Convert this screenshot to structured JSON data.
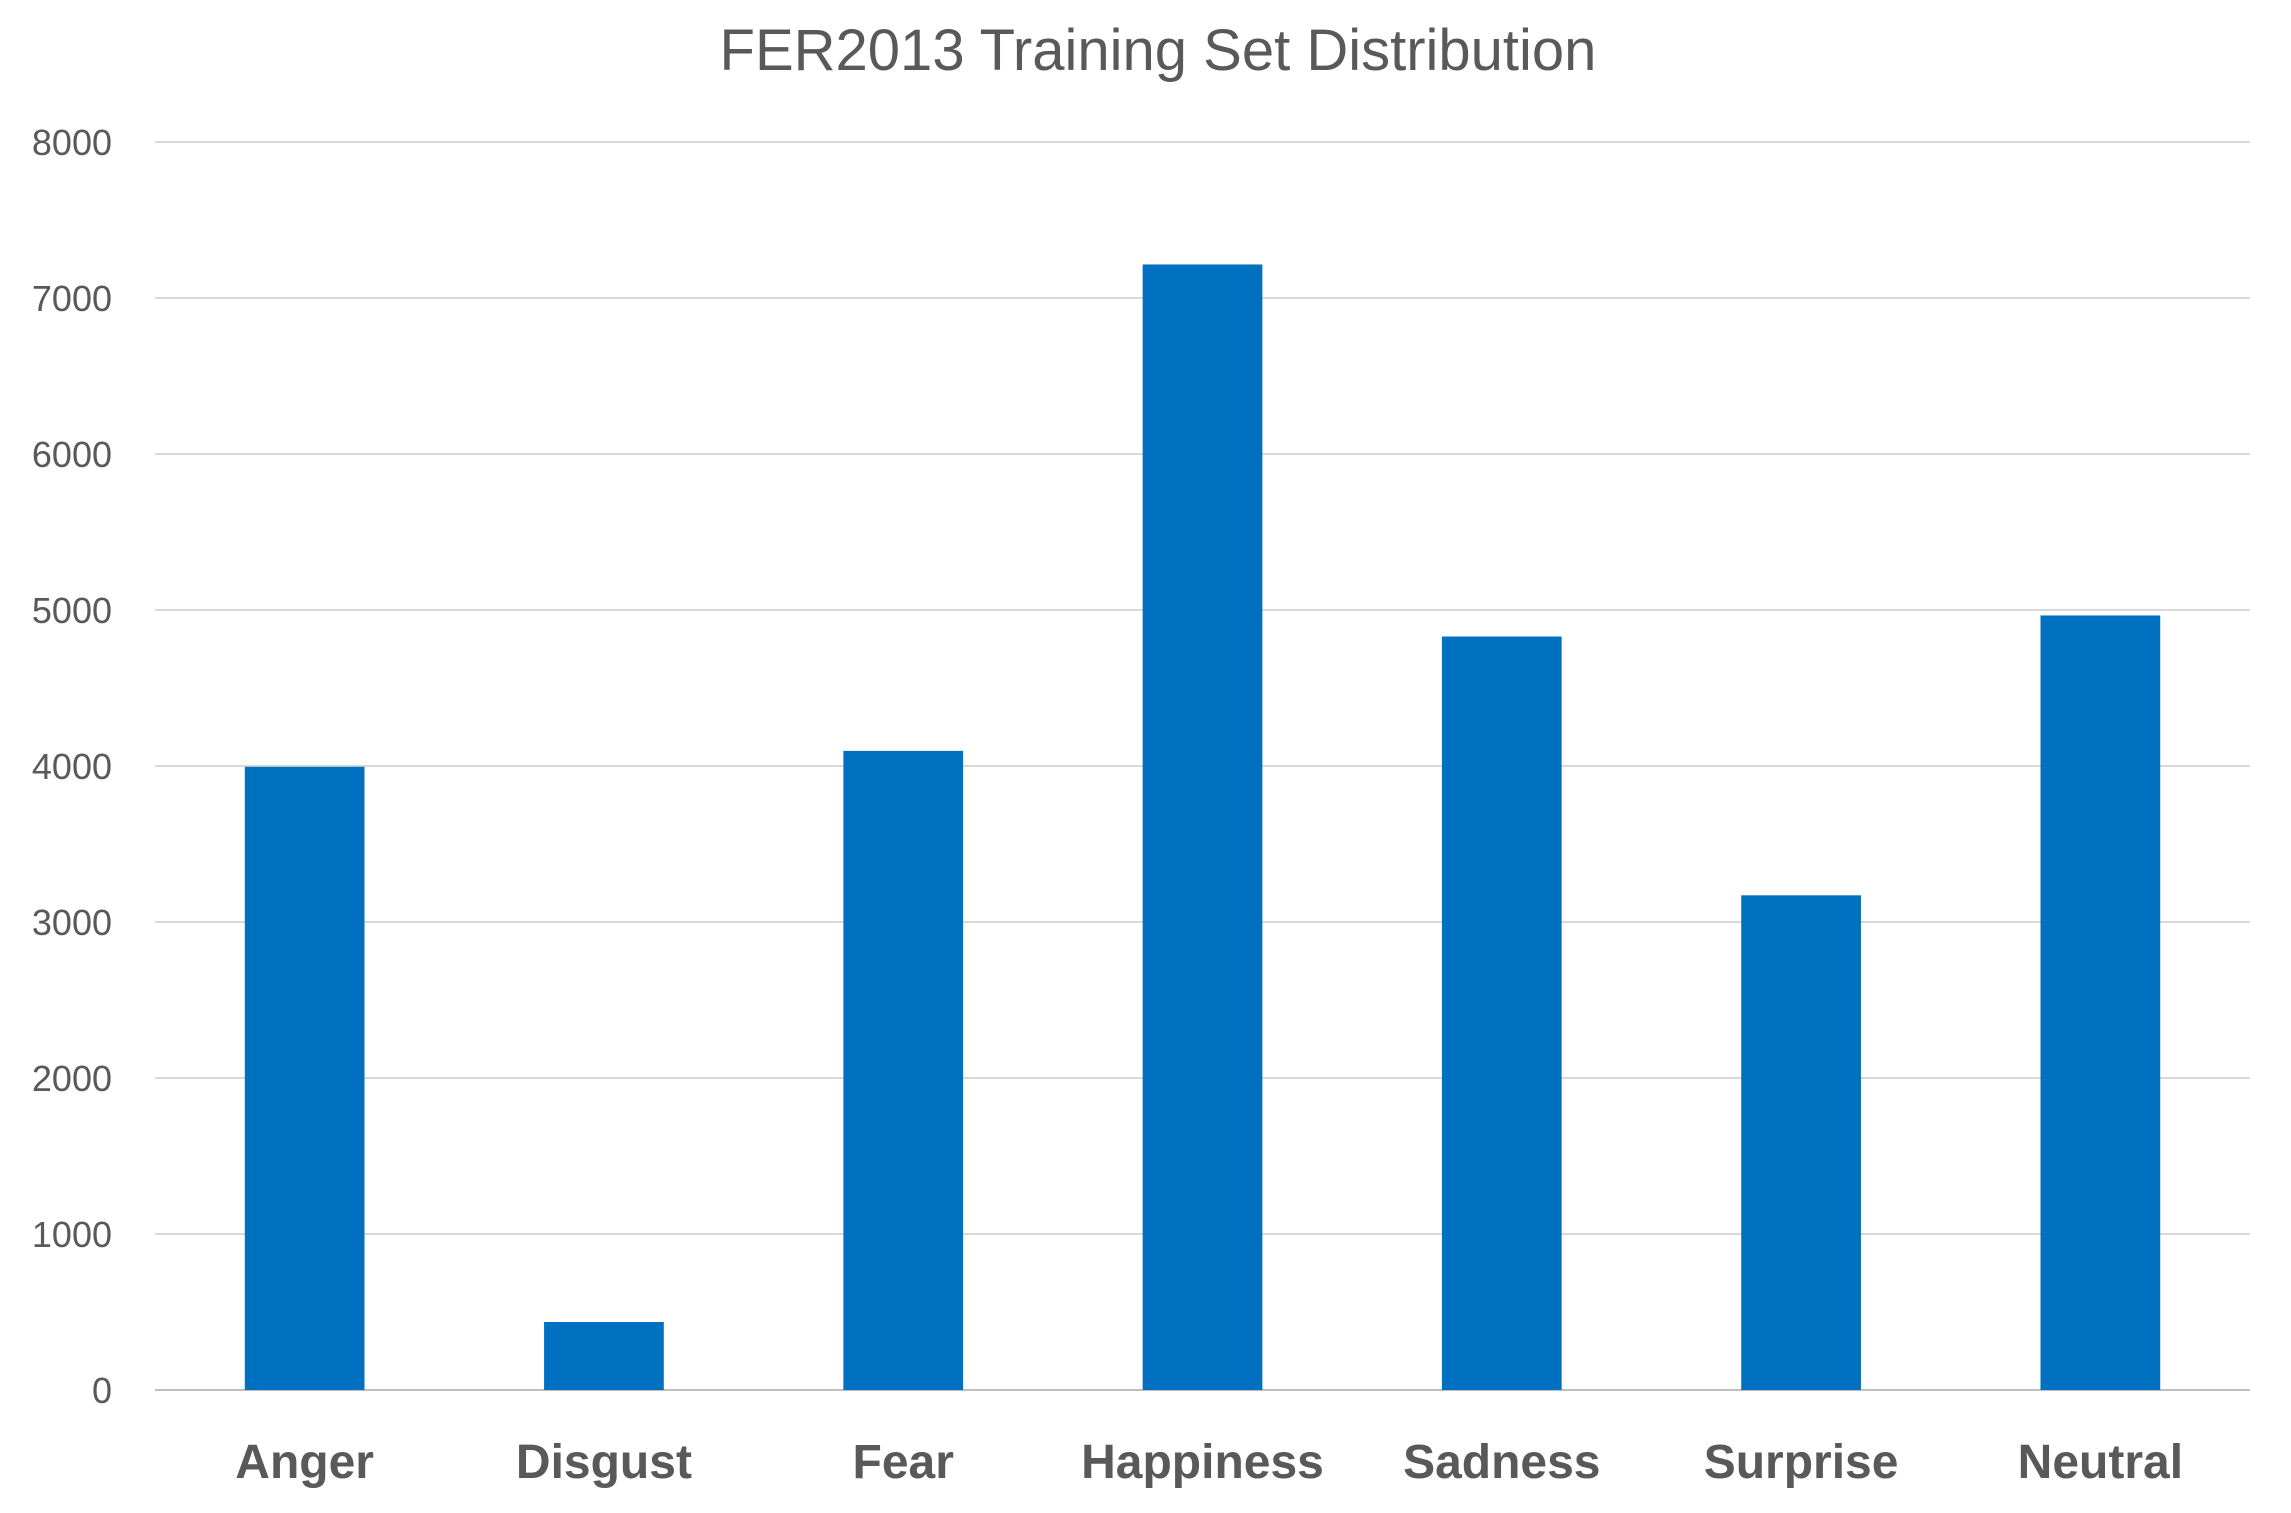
{
  "colors": {
    "bar": "#0070C0",
    "gridline": "#D9D9D9",
    "axis_line": "#BFBFBF",
    "title_text": "#595959",
    "tick_text": "#595959",
    "background": "#FFFFFF"
  },
  "chart_data": {
    "type": "bar",
    "title": "FER2013 Training Set Distribution",
    "xlabel": "",
    "ylabel": "",
    "categories": [
      "Anger",
      "Disgust",
      "Fear",
      "Happiness",
      "Sadness",
      "Surprise",
      "Neutral"
    ],
    "series": [
      {
        "values": [
          3995,
          436,
          4097,
          7215,
          4830,
          3171,
          4965
        ]
      }
    ],
    "ylim": [
      0,
      8000
    ],
    "yticks": [
      0,
      1000,
      2000,
      3000,
      4000,
      5000,
      6000,
      7000,
      8000
    ],
    "ytick_labels": [
      "0",
      "1000",
      "2000",
      "3000",
      "4000",
      "5000",
      "6000",
      "7000",
      "8000"
    ],
    "grid": true,
    "legend": "none"
  }
}
